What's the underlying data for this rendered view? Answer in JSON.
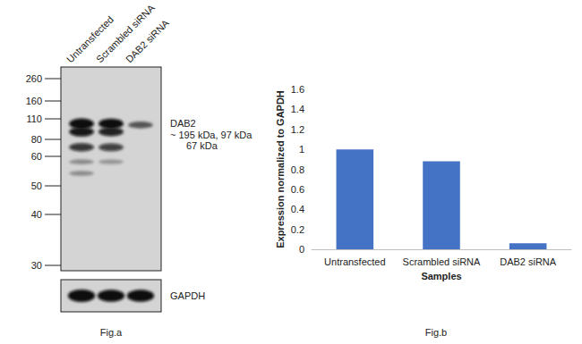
{
  "chart_data": {
    "type": "bar",
    "categories": [
      "Untransfected",
      "Scrambled siRNA",
      "DAB2 siRNA"
    ],
    "values": [
      1,
      0.88,
      0.06
    ],
    "color": "#4472c4",
    "ylim": [
      0,
      1.6
    ],
    "yticks": [
      0,
      0.2,
      0.4,
      0.6,
      0.8,
      1,
      1.2,
      1.4,
      1.6
    ],
    "x_label": "Samples",
    "y_label": "Expression normalized to GAPDH",
    "annotations": [
      "Fig.b"
    ],
    "grid": false
  },
  "blot": {
    "caption": "Fig.a",
    "lanes": [
      "Untransfected",
      "Scrambled siRNA",
      "DAB2 siRNA"
    ],
    "markers_kDa": [
      260,
      160,
      110,
      80,
      60,
      50,
      40,
      30
    ],
    "target": {
      "name": "DAB2",
      "size_lines": [
        "~ 195 kDa, 97 kDa",
        "67 kDa"
      ],
      "bands": [
        [
          {
            "kDa": 102,
            "intensity": 1
          },
          {
            "kDa": 90,
            "intensity": 0.8
          },
          {
            "kDa": 70,
            "intensity": 0.65
          },
          {
            "kDa": 58,
            "intensity": 0.2
          },
          {
            "kDa": 54,
            "intensity": 0.2
          }
        ],
        [
          {
            "kDa": 102,
            "intensity": 0.95
          },
          {
            "kDa": 90,
            "intensity": 0.75
          },
          {
            "kDa": 70,
            "intensity": 0.6
          },
          {
            "kDa": 58,
            "intensity": 0.15
          }
        ],
        [
          {
            "kDa": 100,
            "intensity": 0.45
          }
        ]
      ]
    },
    "loading_control": {
      "name": "GAPDH",
      "intensities": [
        1,
        0.95,
        0.95
      ]
    }
  }
}
